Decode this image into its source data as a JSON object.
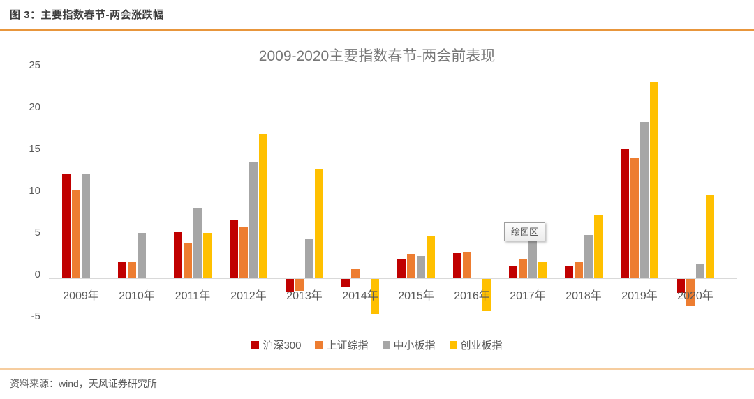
{
  "figure": {
    "caption": "图 3：主要指数春节-两会涨跌幅",
    "source": "资料来源：wind，天风证券研究所"
  },
  "colors": {
    "series_red": "#C00000",
    "series_orange": "#ED7D31",
    "series_gray": "#A6A6A6",
    "series_yellow": "#FFC000",
    "header_rule": "#E8963C",
    "footer_rule": "#F6CD9F",
    "axis_line": "#D9D9D9",
    "axis_text": "#595959",
    "title_text": "#767676"
  },
  "chart_data": {
    "type": "bar",
    "title": "2009-2020主要指数春节-两会前表现",
    "categories": [
      "2009年",
      "2010年",
      "2011年",
      "2012年",
      "2013年",
      "2014年",
      "2015年",
      "2016年",
      "2017年",
      "2018年",
      "2019年",
      "2020年"
    ],
    "series": [
      {
        "name": "沪深300",
        "color": "#C00000",
        "values": [
          12.4,
          1.8,
          5.4,
          6.9,
          -1.6,
          -1.0,
          2.2,
          2.9,
          1.4,
          1.3,
          15.4,
          -1.7
        ]
      },
      {
        "name": "上证综指",
        "color": "#ED7D31",
        "values": [
          10.4,
          1.8,
          4.1,
          6.1,
          -1.4,
          1.1,
          2.8,
          3.1,
          2.2,
          1.8,
          14.3,
          -3.2
        ]
      },
      {
        "name": "中小板指",
        "color": "#A6A6A6",
        "values": [
          12.4,
          5.3,
          8.3,
          13.8,
          4.6,
          null,
          2.6,
          null,
          5.0,
          5.1,
          18.6,
          1.6
        ]
      },
      {
        "name": "创业板指",
        "color": "#FFC000",
        "values": [
          null,
          null,
          5.3,
          17.2,
          13.0,
          -4.2,
          4.9,
          -3.8,
          1.8,
          7.5,
          23.3,
          9.8
        ]
      }
    ],
    "ylim": [
      -5,
      25
    ],
    "yticks": [
      25,
      20,
      15,
      10,
      5,
      0,
      -5
    ],
    "grid": false,
    "legend_position": "bottom",
    "annotation": {
      "text": "绘图区",
      "x_category": "2017年"
    }
  }
}
